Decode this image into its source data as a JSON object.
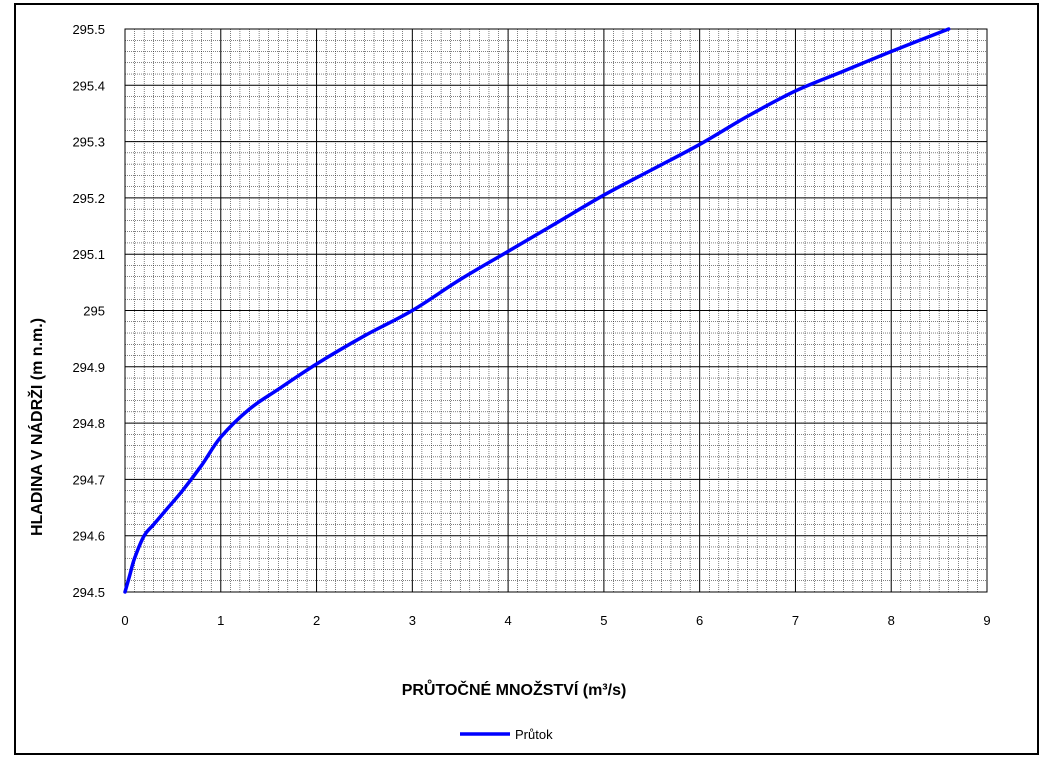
{
  "chart_data": {
    "type": "line",
    "title": "",
    "xlabel": "PRŮTOČNÉ MNOŽSTVÍ (m³/s)",
    "ylabel": "HLADINA V NÁDRŽI (m n.m.)",
    "xlim": [
      0,
      9
    ],
    "ylim": [
      294.5,
      295.5
    ],
    "x_major_step": 1,
    "y_major_step": 0.1,
    "x_ticks": [
      "0",
      "1",
      "2",
      "3",
      "4",
      "5",
      "6",
      "7",
      "8",
      "9"
    ],
    "y_ticks": [
      "294.5",
      "294.6",
      "294.7",
      "294.8",
      "294.9",
      "295",
      "295.1",
      "295.2",
      "295.3",
      "295.4",
      "295.5"
    ],
    "grid": true,
    "legend_position": "bottom",
    "series": [
      {
        "name": "Průtok",
        "color": "#0000ff",
        "x": [
          0,
          0.05,
          0.1,
          0.2,
          0.3,
          0.45,
          0.6,
          0.8,
          1.0,
          1.3,
          1.6,
          2.0,
          2.5,
          3.0,
          3.5,
          4.0,
          4.5,
          5.0,
          5.5,
          6.0,
          6.5,
          7.0,
          7.5,
          8.0,
          8.6
        ],
        "y": [
          294.5,
          294.53,
          294.56,
          294.6,
          294.62,
          294.65,
          294.68,
          294.725,
          294.775,
          294.825,
          294.86,
          294.905,
          294.955,
          295.0,
          295.055,
          295.105,
          295.155,
          295.205,
          295.25,
          295.295,
          295.345,
          295.39,
          295.425,
          295.46,
          295.5
        ]
      }
    ]
  }
}
